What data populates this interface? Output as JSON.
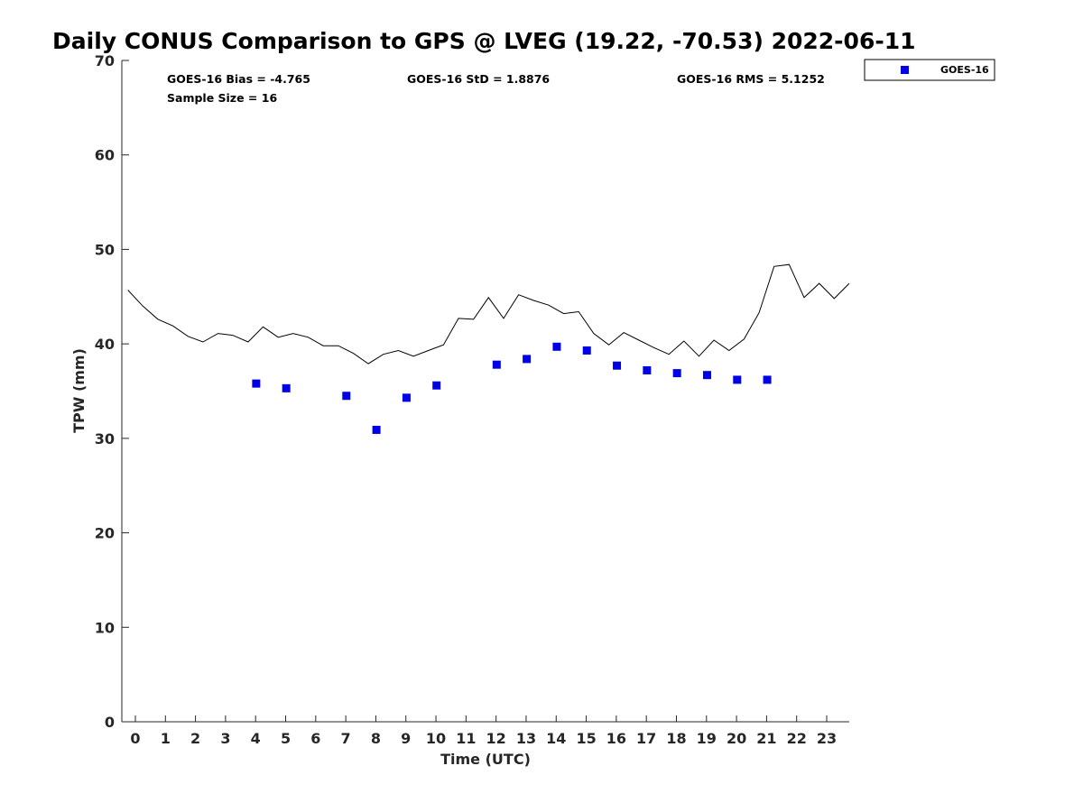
{
  "chart_data": {
    "type": "scatter",
    "title": "Daily CONUS Comparison to GPS @ LVEG (19.22, -70.53) 2022-06-11",
    "xlabel": "Time (UTC)",
    "ylabel": "TPW (mm)",
    "xlim": [
      -0.45,
      23.75
    ],
    "ylim": [
      0,
      70
    ],
    "x_ticks": [
      0,
      1,
      2,
      3,
      4,
      5,
      6,
      7,
      8,
      9,
      10,
      11,
      12,
      13,
      14,
      15,
      16,
      17,
      18,
      19,
      20,
      21,
      22,
      23
    ],
    "y_ticks": [
      0,
      10,
      20,
      30,
      40,
      50,
      60,
      70
    ],
    "grid": false,
    "legend_position": "top-right",
    "stats": {
      "bias": "GOES-16 Bias = -4.765",
      "std": "GOES-16 StD = 1.8876",
      "rms": "GOES-16 RMS = 5.1252",
      "sample_size": "Sample Size = 16"
    },
    "series": [
      {
        "name": "GOES-16",
        "kind": "scatter",
        "marker": "square",
        "color": "#0000e6",
        "x": [
          4.02,
          5.02,
          7.02,
          8.02,
          9.02,
          10.02,
          12.02,
          13.02,
          14.02,
          15.02,
          16.02,
          17.02,
          18.02,
          19.02,
          20.02,
          21.02
        ],
        "y": [
          35.8,
          35.3,
          34.5,
          30.9,
          34.3,
          35.6,
          37.8,
          38.4,
          39.7,
          39.3,
          37.7,
          37.2,
          36.9,
          36.7,
          36.2,
          36.2
        ]
      },
      {
        "kind": "line",
        "color": "#000000",
        "x": [
          -0.25,
          0.25,
          0.75,
          1.25,
          1.75,
          2.25,
          2.75,
          3.25,
          3.75,
          4.25,
          4.75,
          5.25,
          5.75,
          6.25,
          6.75,
          7.25,
          7.75,
          8.25,
          8.75,
          9.25,
          9.75,
          10.25,
          10.75,
          11.25,
          11.75,
          12.25,
          12.75,
          13.25,
          13.75,
          14.25,
          14.75,
          15.25,
          15.75,
          16.25,
          16.75,
          17.25,
          17.75,
          18.25,
          18.75,
          19.25,
          19.75,
          20.25,
          20.75,
          21.25,
          21.75,
          22.25,
          22.75,
          23.25,
          23.75
        ],
        "y": [
          45.7,
          44.0,
          42.6,
          41.9,
          40.8,
          40.2,
          41.1,
          40.9,
          40.2,
          41.8,
          40.7,
          41.1,
          40.7,
          39.8,
          39.8,
          39.0,
          37.9,
          38.9,
          39.3,
          38.7,
          39.3,
          39.9,
          42.7,
          42.6,
          44.9,
          42.7,
          45.2,
          44.6,
          44.1,
          43.2,
          43.4,
          41.1,
          39.9,
          41.2,
          40.4,
          39.6,
          38.9,
          40.3,
          38.7,
          40.4,
          39.3,
          40.5,
          43.3,
          48.2,
          48.4,
          44.9,
          46.4,
          44.8,
          46.4
        ]
      }
    ]
  }
}
